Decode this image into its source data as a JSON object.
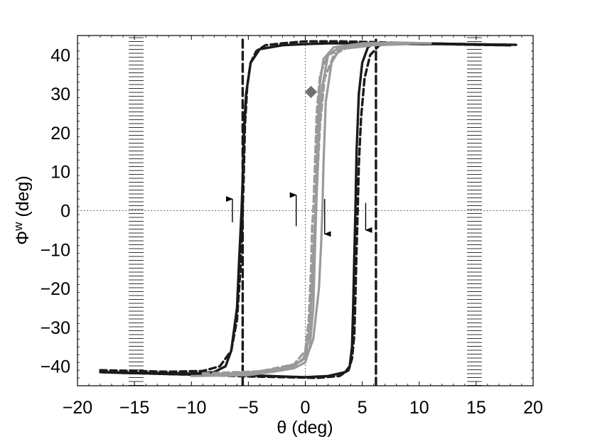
{
  "chart_data": {
    "type": "line",
    "xlabel": "θ (deg)",
    "ylabel": "Φ",
    "ylabel_sup": "w",
    "ylabel_unit": " (deg)",
    "xlim": [
      -20,
      20
    ],
    "ylim": [
      -45,
      45
    ],
    "xticks": [
      -20,
      -15,
      -10,
      -5,
      0,
      5,
      10,
      15,
      20
    ],
    "yticks": [
      -40,
      -30,
      -20,
      -10,
      0,
      10,
      20,
      30,
      40
    ],
    "grid": false,
    "reference_lines": {
      "x": 0,
      "y": 0
    },
    "hatched_bands": [
      [
        -15.5,
        -14.2
      ],
      [
        14.2,
        15.5
      ]
    ],
    "colors": {
      "dark": "#1a1a1a",
      "light": "#9a9a9a",
      "marker": "#707070"
    },
    "series": [
      {
        "style": "dark-dashed-vertical",
        "x": [
          -5.5,
          -5.5
        ],
        "y": [
          -45,
          45
        ]
      },
      {
        "style": "dark-dashed-vertical",
        "x": [
          6.2,
          6.2
        ],
        "y": [
          -45,
          45
        ]
      },
      {
        "style": "dark-solid",
        "x": [
          -18,
          -16,
          -14,
          -12,
          -10,
          -8,
          -7,
          -6.5,
          -6,
          -5.8,
          -5.6,
          -5.5,
          -5.4,
          -5.2,
          -4.8,
          -4,
          -2,
          0,
          2,
          4,
          6,
          8,
          10,
          12,
          14,
          16,
          18
        ],
        "y": [
          -41.5,
          -41.6,
          -41.7,
          -41.8,
          -41.9,
          -41.5,
          -40,
          -36,
          -25,
          -12,
          0,
          8,
          20,
          30,
          38,
          41.5,
          42.5,
          42.8,
          43,
          43,
          43,
          42.9,
          42.8,
          42.8,
          42.7,
          42.6,
          42.5
        ]
      },
      {
        "style": "dark-solid",
        "x": [
          18.5,
          16,
          14,
          12,
          10,
          8,
          6,
          5.5,
          5,
          4.7,
          4.5,
          4.4,
          4.3,
          4.2,
          4.1,
          3.9,
          3.5,
          2,
          0,
          -2,
          -4,
          -6,
          -8,
          -10,
          -12,
          -14,
          -16,
          -18
        ],
        "y": [
          42.6,
          42.7,
          42.8,
          42.9,
          43,
          43,
          42.9,
          42,
          38,
          30,
          15,
          0,
          -12,
          -25,
          -35,
          -40,
          -41.5,
          -42.5,
          -42.8,
          -42.6,
          -42.4,
          -42.3,
          -42.2,
          -42.1,
          -42,
          -41.8,
          -41.7,
          -41.5
        ]
      },
      {
        "style": "dark-dashed",
        "x": [
          -18,
          -15,
          -12,
          -9,
          -7.5,
          -6.5,
          -6,
          -5.7,
          -5.5,
          -5.4,
          -5.3,
          -5.1,
          -4.8,
          -4.3,
          -3.5,
          -2,
          0,
          3,
          6,
          10,
          14,
          18
        ],
        "y": [
          -41,
          -41.2,
          -41.4,
          -41.2,
          -40,
          -36,
          -28,
          -15,
          0,
          10,
          22,
          32,
          38,
          41,
          42.5,
          43,
          43.5,
          43.5,
          43.3,
          43,
          42.8,
          42.6
        ]
      },
      {
        "style": "dark-dashed",
        "x": [
          18,
          15,
          12,
          10,
          8,
          6.5,
          5.7,
          5.2,
          4.9,
          4.7,
          4.6,
          4.5,
          4.4,
          4.3,
          4.1,
          3.8,
          3,
          1,
          -2,
          -5,
          -8,
          -12,
          -16,
          -18
        ],
        "y": [
          42.5,
          42.6,
          42.8,
          43,
          43,
          42.5,
          40,
          34,
          24,
          12,
          0,
          -10,
          -22,
          -32,
          -38,
          -41,
          -42.5,
          -43,
          -42.8,
          -42.6,
          -42.3,
          -42,
          -41.7,
          -41.5
        ]
      },
      {
        "style": "light-solid",
        "x": [
          -10,
          -5,
          -2,
          0,
          0.4,
          0.6,
          0.8,
          0.9,
          1,
          1.1,
          1.3,
          1.6,
          2.5,
          5,
          8,
          11
        ],
        "y": [
          -42.5,
          -42.3,
          -41,
          -38,
          -30,
          -18,
          -5,
          0,
          10,
          22,
          33,
          39,
          42,
          43,
          43.2,
          43
        ]
      },
      {
        "style": "light-solid",
        "x": [
          11,
          8,
          5,
          3,
          2,
          1.5,
          1.2,
          1.05,
          0.95,
          0.85,
          0.7,
          0.4,
          0,
          -1,
          -3,
          -6,
          -9
        ],
        "y": [
          43,
          43,
          42.8,
          42,
          40,
          32,
          20,
          8,
          0,
          -10,
          -25,
          -35,
          -39,
          -40.5,
          -41.5,
          -42,
          -42.3
        ]
      },
      {
        "style": "light-solid",
        "x": [
          -8,
          -4,
          -1,
          0.2,
          0.7,
          1.2,
          1.4,
          1.5,
          1.6,
          1.8,
          2.3,
          3,
          6,
          9
        ],
        "y": [
          -42,
          -41.5,
          -40,
          -37,
          -33,
          -20,
          -8,
          0,
          12,
          28,
          38,
          41.5,
          42.5,
          42.8
        ]
      },
      {
        "style": "light-dashed",
        "x": [
          -9,
          -4,
          -1,
          0,
          0.3,
          0.5,
          0.6,
          0.7,
          0.8,
          1.0,
          1.3,
          2,
          4,
          7,
          10
        ],
        "y": [
          -41.8,
          -41.3,
          -39.5,
          -36,
          -28,
          -15,
          -4,
          0,
          8,
          25,
          35,
          40,
          42.5,
          43,
          43
        ]
      },
      {
        "style": "light-dashed",
        "x": [
          10,
          7,
          4,
          2.5,
          1.7,
          1.3,
          1.0,
          0.8,
          0.6,
          0.3,
          -0.2,
          -2,
          -5,
          -8
        ],
        "y": [
          43,
          43,
          42.5,
          40,
          34,
          22,
          5,
          -6,
          -20,
          -33,
          -38.5,
          -40.5,
          -41.6,
          -42
        ]
      }
    ],
    "marker": {
      "shape": "diamond",
      "x": 0.5,
      "y": 30.5
    },
    "arrows": [
      {
        "x": -6.4,
        "y_from": -3,
        "y_to": 3,
        "dir": "up"
      },
      {
        "x": -0.8,
        "y_from": -4,
        "y_to": 4,
        "dir": "up"
      },
      {
        "x": 1.7,
        "y_from": 3,
        "y_to": -6,
        "dir": "down"
      },
      {
        "x": 5.3,
        "y_from": 2,
        "y_to": -5,
        "dir": "down"
      }
    ]
  }
}
